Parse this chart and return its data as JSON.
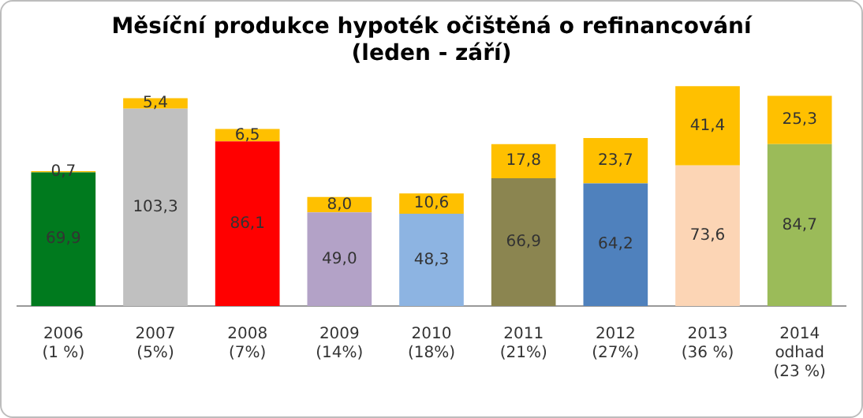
{
  "chart_data": {
    "type": "bar",
    "stacked": true,
    "title": "Měsíční produkce hypoték očištěná o refinancování\n(leden - září)",
    "categories": [
      "2006\n(1 %)",
      "2007\n(5%)",
      "2008\n(7%)",
      "2009\n(14%)",
      "2010\n(18%)",
      "2011\n(21%)",
      "2012\n(27%)",
      "2013\n(36 %)",
      "2014\nodhad\n(23 %)"
    ],
    "tick_labels": "x",
    "grid": false,
    "legend": false,
    "series": [
      {
        "colors": [
          "#007a1e",
          "#c0c0c0",
          "#ff0000",
          "#b3a2c7",
          "#8db4e2",
          "#8b8550",
          "#4f81bd",
          "#fcd5b5",
          "#9bbb59"
        ],
        "values": [
          69.9,
          103.3,
          86.1,
          49.0,
          48.3,
          66.9,
          64.2,
          73.6,
          84.7
        ],
        "value_labels": [
          "69,9",
          "103,3",
          "86,1",
          "49,0",
          "48,3",
          "66,9",
          "64,2",
          "73,6",
          "84,7"
        ]
      },
      {
        "color": "#ffc000",
        "values": [
          0.7,
          5.4,
          6.5,
          8.0,
          10.6,
          17.8,
          23.7,
          41.4,
          25.3
        ],
        "value_labels": [
          "0,7",
          "5,4",
          "6,5",
          "8,0",
          "10,6",
          "17,8",
          "23,7",
          "41,4",
          "25,3"
        ]
      }
    ]
  }
}
